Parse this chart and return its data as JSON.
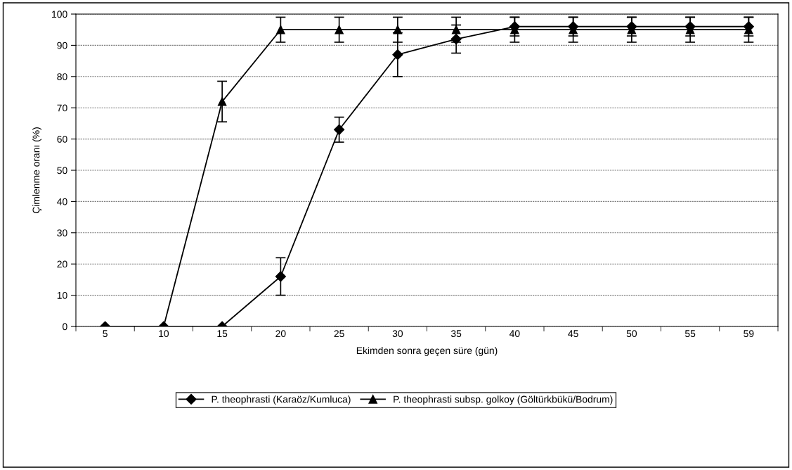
{
  "chart_data": {
    "type": "line",
    "xlabel": "Ekimden sonra geçen süre (gün)",
    "ylabel": "Çimlenme oranı (%)",
    "categories": [
      "5",
      "10",
      "15",
      "20",
      "25",
      "30",
      "35",
      "40",
      "45",
      "50",
      "55",
      "59"
    ],
    "series": [
      {
        "name": "P. theophrasti (Karaöz/Kumluca)",
        "color": "#000000",
        "marker": "diamond",
        "values": [
          0,
          0,
          0,
          16,
          63,
          87,
          92,
          96,
          96,
          96,
          96,
          96
        ],
        "errors": [
          null,
          null,
          null,
          6,
          4,
          7,
          4.5,
          3,
          3,
          3,
          3,
          3
        ]
      },
      {
        "name": "P. theophrasti subsp. golkoy (Göltürkbükü/Bodrum)",
        "color": "#000000",
        "marker": "triangle",
        "values": [
          0,
          0,
          72,
          95,
          95,
          95,
          95,
          95,
          95,
          95,
          95,
          95
        ],
        "errors": [
          null,
          null,
          6.5,
          4,
          4,
          4,
          4,
          4,
          4,
          4,
          4,
          4
        ]
      }
    ],
    "ylim": [
      0,
      100
    ],
    "yticks": [
      0,
      10,
      20,
      30,
      40,
      50,
      60,
      70,
      80,
      90,
      100
    ],
    "grid": "y",
    "legend": "bottom",
    "line_style": "solid"
  }
}
